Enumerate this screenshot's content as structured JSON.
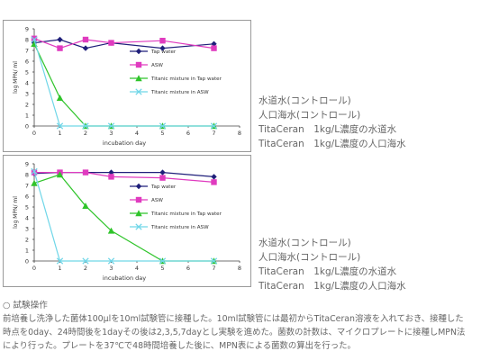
{
  "chart_data": [
    {
      "type": "line",
      "xlabel": "incubation day",
      "ylabel": "log MPN/ ml",
      "xlim": [
        0,
        8
      ],
      "ylim": [
        0,
        9
      ],
      "xticks": [
        "0",
        "1",
        "2",
        "3",
        "4",
        "5",
        "6",
        "7",
        "8"
      ],
      "yticks": [
        "0",
        "1",
        "2",
        "3",
        "4",
        "5",
        "6",
        "7",
        "8",
        "9"
      ],
      "legend_position": "right",
      "series": [
        {
          "name": "Tap water",
          "color": "#1f1f7a",
          "marker": "diamond",
          "x": [
            0,
            1,
            2,
            3,
            5,
            7
          ],
          "y": [
            7.7,
            8.0,
            7.2,
            7.7,
            7.2,
            7.6
          ]
        },
        {
          "name": "ASW",
          "color": "#e03bbf",
          "marker": "square",
          "x": [
            0,
            1,
            2,
            3,
            5,
            7
          ],
          "y": [
            8.1,
            7.2,
            8.0,
            7.7,
            7.9,
            7.2
          ]
        },
        {
          "name": "Titanic mixture in Tap water",
          "color": "#2fc42a",
          "marker": "triangle",
          "x": [
            0,
            1,
            2,
            3,
            5,
            7
          ],
          "y": [
            7.6,
            2.6,
            0,
            0,
            0,
            0
          ]
        },
        {
          "name": "Titanic mixture in ASW",
          "color": "#6fd6e8",
          "marker": "x",
          "x": [
            0,
            1,
            2,
            3,
            5,
            7
          ],
          "y": [
            8.0,
            0,
            0,
            0,
            0,
            0
          ]
        }
      ]
    },
    {
      "type": "line",
      "xlabel": "incubation day",
      "ylabel": "log MPN/ ml",
      "xlim": [
        0,
        8
      ],
      "ylim": [
        0,
        9
      ],
      "xticks": [
        "0",
        "1",
        "2",
        "3",
        "4",
        "5",
        "6",
        "7",
        "8"
      ],
      "yticks": [
        "0",
        "1",
        "2",
        "3",
        "4",
        "5",
        "6",
        "7",
        "8",
        "9"
      ],
      "legend_position": "right",
      "series": [
        {
          "name": "Tap water",
          "color": "#1f1f7a",
          "marker": "diamond",
          "x": [
            0,
            1,
            2,
            3,
            5,
            7
          ],
          "y": [
            8.1,
            8.2,
            8.2,
            8.2,
            8.2,
            7.8
          ]
        },
        {
          "name": "ASW",
          "color": "#e03bbf",
          "marker": "square",
          "x": [
            0,
            1,
            2,
            3,
            5,
            7
          ],
          "y": [
            8.2,
            8.2,
            8.2,
            7.8,
            7.7,
            7.3
          ]
        },
        {
          "name": "Titanic mixture in Tap water",
          "color": "#2fc42a",
          "marker": "triangle",
          "x": [
            0,
            1,
            2,
            3,
            5,
            7
          ],
          "y": [
            7.2,
            8.0,
            5.1,
            2.8,
            0,
            0
          ]
        },
        {
          "name": "Titanic mixture in ASW",
          "color": "#6fd6e8",
          "marker": "x",
          "x": [
            0,
            1,
            2,
            3,
            5,
            7
          ],
          "y": [
            8.3,
            0,
            0,
            0,
            0,
            0
          ]
        }
      ]
    }
  ],
  "side_labels": [
    [
      "水道水(コントロール)",
      "人口海水(コントロール)",
      "TitaCeran　1kg/L濃度の水道水",
      "TitaCeran　1kg/L濃度の人口海水"
    ],
    [
      "水道水(コントロール)",
      "人口海水(コントロール)",
      "TitaCeran　1kg/L濃度の水道水",
      "TitaCeran　1kg/L濃度の人口海水"
    ]
  ],
  "procedure": {
    "heading": "○ 試験操作",
    "lines": [
      "前培養し洗浄した菌体100μlを10ml試験管に接種した。10ml試験管には最初からTitaCeran溶液を入れておき、接種した",
      "時点を0day、24時間後を1dayその後は2,3,5,7dayとし実験を進めた。菌数の計数は、マイクロプレートに接種しMPN法",
      "により行った。プレートを37℃で48時間培養した後に、MPN表による菌数の算出を行った。"
    ]
  }
}
